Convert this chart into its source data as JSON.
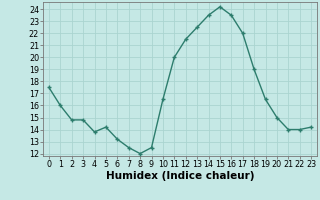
{
  "x": [
    0,
    1,
    2,
    3,
    4,
    5,
    6,
    7,
    8,
    9,
    10,
    11,
    12,
    13,
    14,
    15,
    16,
    17,
    18,
    19,
    20,
    21,
    22,
    23
  ],
  "y": [
    17.5,
    16.0,
    14.8,
    14.8,
    13.8,
    14.2,
    13.2,
    12.5,
    12.0,
    12.5,
    16.5,
    20.0,
    21.5,
    22.5,
    23.5,
    24.2,
    23.5,
    22.0,
    19.0,
    16.5,
    15.0,
    14.0,
    14.0,
    14.2
  ],
  "xlabel": "Humidex (Indice chaleur)",
  "xlim": [
    -0.5,
    23.5
  ],
  "ylim": [
    11.8,
    24.6
  ],
  "yticks": [
    12,
    13,
    14,
    15,
    16,
    17,
    18,
    19,
    20,
    21,
    22,
    23,
    24
  ],
  "xticks": [
    0,
    1,
    2,
    3,
    4,
    5,
    6,
    7,
    8,
    9,
    10,
    11,
    12,
    13,
    14,
    15,
    16,
    17,
    18,
    19,
    20,
    21,
    22,
    23
  ],
  "line_color": "#2d7d6d",
  "marker_color": "#2d7d6d",
  "bg_color": "#c5e8e5",
  "grid_color": "#aad4d0",
  "tick_label_fontsize": 5.8,
  "xlabel_fontsize": 7.5
}
